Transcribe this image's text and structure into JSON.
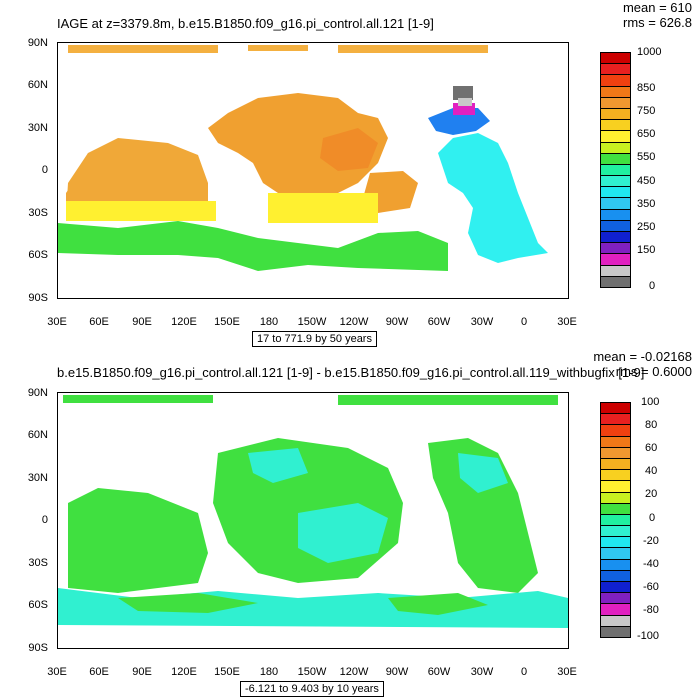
{
  "panels": [
    {
      "title": "IAGE at z=3379.8m, b.e15.B1850.f09_g16.pi_control.all.121 [1-9]",
      "stats": {
        "mean": "mean = 610",
        "rms": "rms = 626.8"
      },
      "caption": "17 to 771.9 by 50 years",
      "y_labels": [
        "90N",
        "60N",
        "30N",
        "0",
        "30S",
        "60S",
        "90S"
      ],
      "x_labels": [
        "30E",
        "60E",
        "90E",
        "120E",
        "150E",
        "180",
        "150W",
        "120W",
        "90W",
        "60W",
        "30W",
        "0",
        "30E"
      ],
      "colorbar": {
        "labels": [
          "1000",
          "850",
          "750",
          "650",
          "550",
          "450",
          "350",
          "250",
          "150",
          "0"
        ],
        "colors": [
          "#cc0000",
          "#e82020",
          "#f04010",
          "#f07818",
          "#f09830",
          "#f4b020",
          "#f8d020",
          "#fff030",
          "#c8f020",
          "#40e040",
          "#20f0a0",
          "#30f0d0",
          "#20e8f0",
          "#30c8f0",
          "#1890f0",
          "#1060e0",
          "#1020d0",
          "#8020c0",
          "#e020c0",
          "#c8c8c8",
          "#707070"
        ]
      },
      "map_colors": {
        "pacific": "#f0a030",
        "pacific_deep": "#f08c28",
        "indian": "#f0a838",
        "southern": "#40e040",
        "atlantic": "#30f0f0",
        "atlantic_north": "#2080f0",
        "south_band": "#fff030",
        "arctic": "#f4b040"
      }
    },
    {
      "title": "b.e15.B1850.f09_g16.pi_control.all.121 [1-9] - b.e15.B1850.f09_g16.pi_control.all.119_withbugfix [1-9]",
      "stats": {
        "mean": "mean = -0.02168",
        "rms": "rms = 0.6000"
      },
      "caption": "-6.121 to 9.403 by 10 years",
      "y_labels": [
        "90N",
        "60N",
        "30N",
        "0",
        "30S",
        "60S",
        "90S"
      ],
      "x_labels": [
        "30E",
        "60E",
        "90E",
        "120E",
        "150E",
        "180",
        "150W",
        "120W",
        "90W",
        "60W",
        "30W",
        "0",
        "30E"
      ],
      "colorbar": {
        "labels": [
          "100",
          "80",
          "60",
          "40",
          "20",
          "0",
          "-20",
          "-40",
          "-60",
          "-80",
          "-100"
        ],
        "colors": [
          "#cc0000",
          "#e82020",
          "#f04010",
          "#f07818",
          "#f09830",
          "#f4b020",
          "#f8d020",
          "#fff030",
          "#c8f020",
          "#40e040",
          "#20f0a0",
          "#30f0d0",
          "#20e8f0",
          "#30c8f0",
          "#1890f0",
          "#1060e0",
          "#1020d0",
          "#8020c0",
          "#e020c0",
          "#c8c8c8",
          "#707070"
        ]
      },
      "map_colors": {
        "green": "#40e040",
        "cyan": "#30f0d0"
      }
    }
  ]
}
